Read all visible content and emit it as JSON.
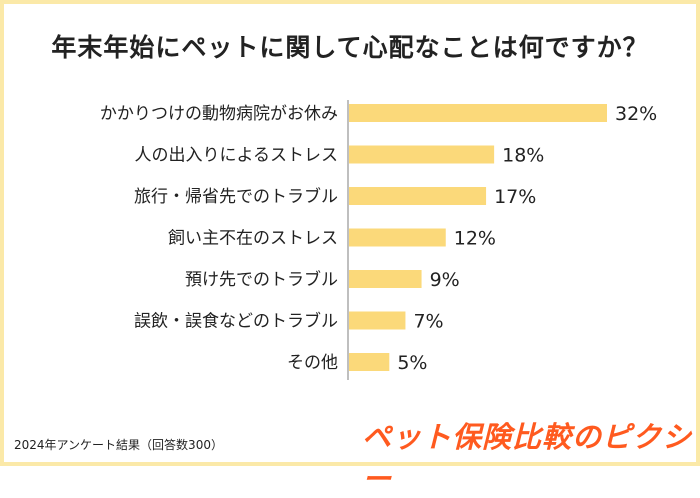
{
  "title": "年末年始にペットに関して心配なことは何ですか？",
  "footnote": "2024年アンケート結果（回答数300）",
  "brand": "ペット保険比較のピクシー",
  "colors": {
    "bar": "#fbd97a",
    "axis": "#aaaaaa",
    "frame": "#fbe9a8",
    "brand": "#ff5a1f",
    "text": "#222222"
  },
  "chart_data": {
    "type": "bar",
    "orientation": "horizontal",
    "categories": [
      "かかりつけの動物病院がお休み",
      "人の出入りによるストレス",
      "旅行・帰省先でのトラブル",
      "飼い主不在のストレス",
      "預け先でのトラブル",
      "誤飲・誤食などのトラブル",
      "その他"
    ],
    "values": [
      32,
      18,
      17,
      12,
      9,
      7,
      5
    ],
    "value_labels": [
      "32%",
      "18%",
      "17%",
      "12%",
      "9%",
      "7%",
      "5%"
    ],
    "unit": "%",
    "xlim": [
      0,
      32
    ],
    "grid": false
  }
}
